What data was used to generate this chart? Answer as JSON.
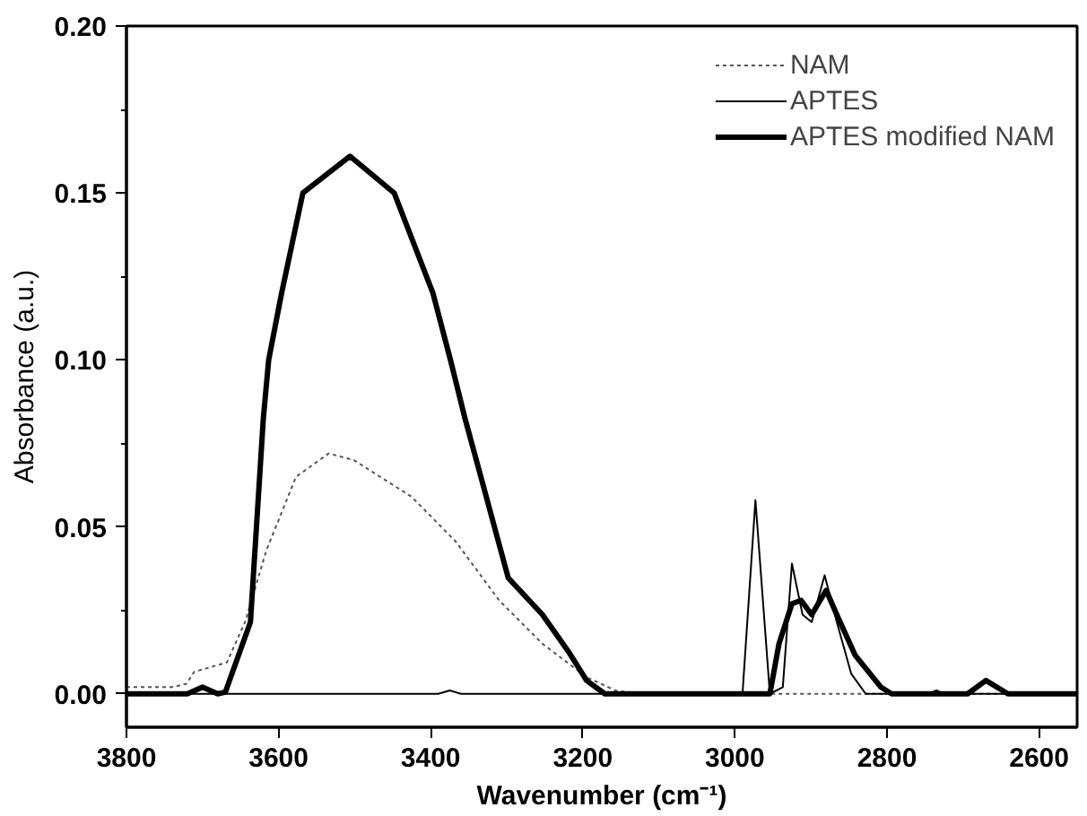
{
  "chart_data": {
    "type": "line",
    "xlabel": "Wavenumber (cm⁻¹)",
    "ylabel": "Absorbance (a.u.)",
    "xlim": [
      3800,
      2550
    ],
    "xticks": [
      3800,
      3600,
      3400,
      3200,
      3000,
      2800,
      2600
    ],
    "ylim": [
      -0.01,
      0.2
    ],
    "yticks": [
      {
        "value": 0,
        "label": "0.00"
      },
      {
        "value": 0.025,
        "label": null
      },
      {
        "value": 0.05,
        "label": "0.05"
      },
      {
        "value": 0.075,
        "label": null
      },
      {
        "value": 0.1,
        "label": "0.10"
      },
      {
        "value": 0.125,
        "label": null
      },
      {
        "value": 0.15,
        "label": "0.15"
      },
      {
        "value": 0.175,
        "label": null
      },
      {
        "value": 0.2,
        "label": "0.20"
      }
    ],
    "grid": false,
    "legend": "top right",
    "series": [
      {
        "name": "NAM",
        "color": "#555555",
        "line_style": "dotted",
        "x": [
          3800,
          3740,
          3721,
          3711,
          3668,
          3644,
          3616,
          3577,
          3534,
          3501,
          3425,
          3367,
          3310,
          3253,
          3195,
          3157,
          3128,
          2950,
          2820,
          2550
        ],
        "values": [
          0.002,
          0.002,
          0.003,
          0.0066,
          0.0094,
          0.0215,
          0.043,
          0.065,
          0.072,
          0.07,
          0.059,
          0.0456,
          0.028,
          0.015,
          0.005,
          0.001,
          0,
          0,
          0,
          0
        ]
      },
      {
        "name": "APTES",
        "color": "#000000",
        "line_style": "solid",
        "x": [
          3800,
          3390,
          3375,
          3360,
          2990,
          2973,
          2954,
          2937,
          2925,
          2911,
          2899,
          2882,
          2866,
          2847,
          2828,
          2745,
          2735,
          2725,
          2550
        ],
        "values": [
          0,
          0,
          0.001,
          0,
          0,
          0.058,
          0,
          0.002,
          0.039,
          0.0237,
          0.0215,
          0.0355,
          0.0215,
          0.006,
          0,
          0,
          0.001,
          0,
          0
        ]
      },
      {
        "name": "APTES modified NAM",
        "color": "#000000",
        "line_style": "solid",
        "x": [
          3800,
          3740,
          3720,
          3700,
          3680,
          3670,
          3637,
          3620,
          3613,
          3596,
          3568,
          3506,
          3448,
          3397,
          3374,
          3355,
          3334,
          3298,
          3253,
          3219,
          3195,
          3171,
          2954,
          2942,
          2925,
          2913,
          2899,
          2880,
          2866,
          2842,
          2808,
          2794,
          2694,
          2670,
          2641,
          2550
        ],
        "values": [
          0,
          0,
          0,
          0.002,
          0,
          0.0005,
          0.0215,
          0.0826,
          0.1,
          0.12,
          0.15,
          0.161,
          0.15,
          0.12,
          0.1,
          0.0826,
          0.065,
          0.0347,
          0.0237,
          0.0127,
          0.004,
          0,
          0,
          0.015,
          0.027,
          0.028,
          0.0237,
          0.031,
          0.0237,
          0.0116,
          0.002,
          0,
          0,
          0.004,
          0,
          0
        ]
      }
    ]
  }
}
